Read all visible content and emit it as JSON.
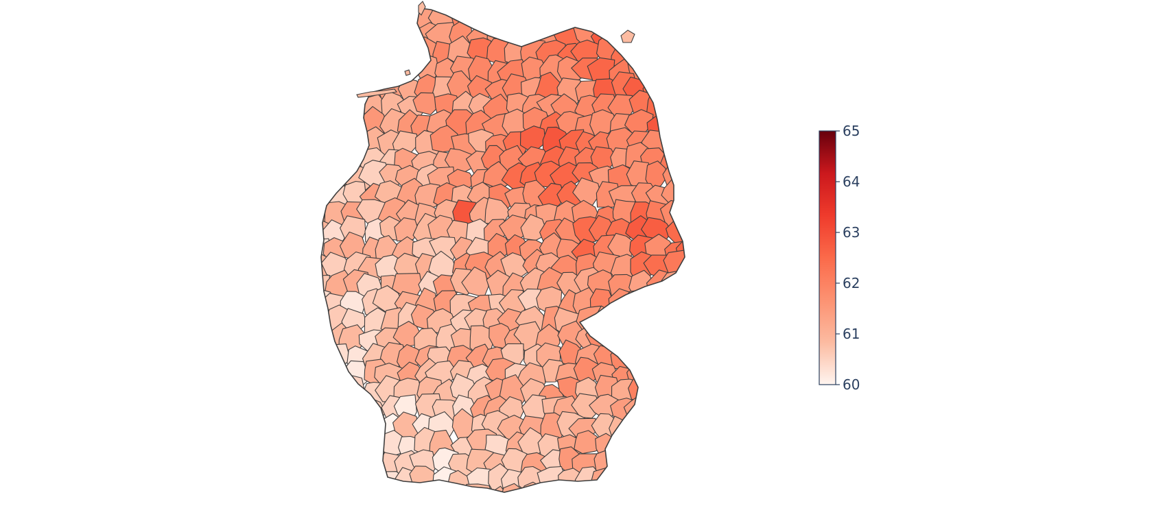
{
  "map": {
    "country": "Germany",
    "type": "choropleth",
    "colorscale": "Reds",
    "colorscale_stops": [
      "#fff5f0",
      "#fcbba1",
      "#fc9272",
      "#fb6a4a",
      "#ef3b2c",
      "#cb181d",
      "#67000d"
    ],
    "outline_color": "#3d3d3d"
  },
  "colorbar": {
    "min": 60,
    "max": 65,
    "ticks": [
      "60",
      "61",
      "62",
      "63",
      "64",
      "65"
    ],
    "tick_color": "#2a3f5f"
  }
}
